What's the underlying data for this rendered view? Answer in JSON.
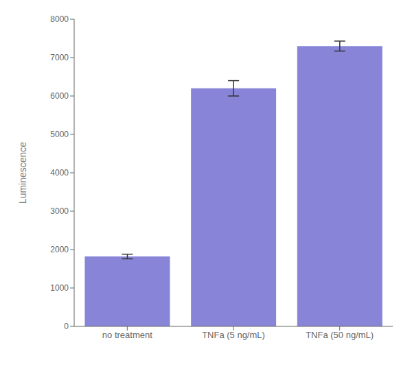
{
  "chart_data": {
    "type": "bar",
    "categories": [
      "no treatment",
      "TNFa (5 ng/mL)",
      "TNFa (50 ng/mL)"
    ],
    "values": [
      1820,
      6200,
      7300
    ],
    "errors": [
      60,
      200,
      130
    ],
    "ylabel": "Luminescence",
    "ylim": [
      0,
      8000
    ],
    "yticks": [
      0,
      1000,
      2000,
      3000,
      4000,
      5000,
      6000,
      7000,
      8000
    ],
    "grid": false
  }
}
